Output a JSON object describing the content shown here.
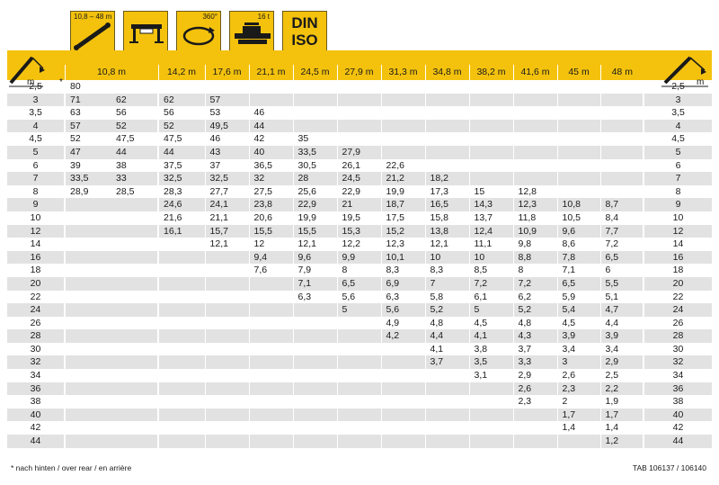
{
  "icons": {
    "boom_range": "10,8 – 48 m",
    "outrigger_icon": "outrigger-icon",
    "rotation": "360°",
    "counterweight": "16 t",
    "standard_line1": "DIN",
    "standard_line2": "ISO"
  },
  "header": {
    "radius_unit": "m",
    "right_unit": "m",
    "boom_lengths": [
      "10,8 m",
      "14,2 m",
      "17,6 m",
      "21,1 m",
      "24,5 m",
      "27,9 m",
      "31,3 m",
      "34,8 m",
      "38,2 m",
      "41,6 m",
      "45 m",
      "48 m"
    ],
    "footnote_marker": "*"
  },
  "rows": [
    {
      "r": "2,5",
      "v": [
        "80",
        "",
        "",
        "",
        "",
        "",
        "",
        "",
        "",
        "",
        "",
        "",
        ""
      ]
    },
    {
      "r": "3",
      "v": [
        "71",
        "62",
        "62",
        "57",
        "",
        "",
        "",
        "",
        "",
        "",
        "",
        "",
        ""
      ]
    },
    {
      "r": "3,5",
      "v": [
        "63",
        "56",
        "56",
        "53",
        "46",
        "",
        "",
        "",
        "",
        "",
        "",
        "",
        ""
      ]
    },
    {
      "r": "4",
      "v": [
        "57",
        "52",
        "52",
        "49,5",
        "44",
        "",
        "",
        "",
        "",
        "",
        "",
        "",
        ""
      ]
    },
    {
      "r": "4,5",
      "v": [
        "52",
        "47,5",
        "47,5",
        "46",
        "42",
        "35",
        "",
        "",
        "",
        "",
        "",
        "",
        ""
      ]
    },
    {
      "r": "5",
      "v": [
        "47",
        "44",
        "44",
        "43",
        "40",
        "33,5",
        "27,9",
        "",
        "",
        "",
        "",
        "",
        ""
      ]
    },
    {
      "r": "6",
      "v": [
        "39",
        "38",
        "37,5",
        "37",
        "36,5",
        "30,5",
        "26,1",
        "22,6",
        "",
        "",
        "",
        "",
        ""
      ]
    },
    {
      "r": "7",
      "v": [
        "33,5",
        "33",
        "32,5",
        "32,5",
        "32",
        "28",
        "24,5",
        "21,2",
        "18,2",
        "",
        "",
        "",
        ""
      ]
    },
    {
      "r": "8",
      "v": [
        "28,9",
        "28,5",
        "28,3",
        "27,7",
        "27,5",
        "25,6",
        "22,9",
        "19,9",
        "17,3",
        "15",
        "12,8",
        "",
        ""
      ]
    },
    {
      "r": "9",
      "v": [
        "",
        "",
        "24,6",
        "24,1",
        "23,8",
        "22,9",
        "21",
        "18,7",
        "16,5",
        "14,3",
        "12,3",
        "10,8",
        "8,7"
      ]
    },
    {
      "r": "10",
      "v": [
        "",
        "",
        "21,6",
        "21,1",
        "20,6",
        "19,9",
        "19,5",
        "17,5",
        "15,8",
        "13,7",
        "11,8",
        "10,5",
        "8,4"
      ]
    },
    {
      "r": "12",
      "v": [
        "",
        "",
        "16,1",
        "15,7",
        "15,5",
        "15,5",
        "15,3",
        "15,2",
        "13,8",
        "12,4",
        "10,9",
        "9,6",
        "7,7"
      ]
    },
    {
      "r": "14",
      "v": [
        "",
        "",
        "",
        "12,1",
        "12",
        "12,1",
        "12,2",
        "12,3",
        "12,1",
        "11,1",
        "9,8",
        "8,6",
        "7,2"
      ]
    },
    {
      "r": "16",
      "v": [
        "",
        "",
        "",
        "",
        "9,4",
        "9,6",
        "9,9",
        "10,1",
        "10",
        "10",
        "8,8",
        "7,8",
        "6,5"
      ]
    },
    {
      "r": "18",
      "v": [
        "",
        "",
        "",
        "",
        "7,6",
        "7,9",
        "8",
        "8,3",
        "8,3",
        "8,5",
        "8",
        "7,1",
        "6"
      ]
    },
    {
      "r": "20",
      "v": [
        "",
        "",
        "",
        "",
        "",
        "7,1",
        "6,5",
        "6,9",
        "7",
        "7,2",
        "7,2",
        "6,5",
        "5,5"
      ]
    },
    {
      "r": "22",
      "v": [
        "",
        "",
        "",
        "",
        "",
        "6,3",
        "5,6",
        "6,3",
        "5,8",
        "6,1",
        "6,2",
        "5,9",
        "5,1"
      ]
    },
    {
      "r": "24",
      "v": [
        "",
        "",
        "",
        "",
        "",
        "",
        "5",
        "5,6",
        "5,2",
        "5",
        "5,2",
        "5,4",
        "4,7"
      ]
    },
    {
      "r": "26",
      "v": [
        "",
        "",
        "",
        "",
        "",
        "",
        "",
        "4,9",
        "4,8",
        "4,5",
        "4,8",
        "4,5",
        "4,4"
      ]
    },
    {
      "r": "28",
      "v": [
        "",
        "",
        "",
        "",
        "",
        "",
        "",
        "4,2",
        "4,4",
        "4,1",
        "4,3",
        "3,9",
        "3,9"
      ]
    },
    {
      "r": "30",
      "v": [
        "",
        "",
        "",
        "",
        "",
        "",
        "",
        "",
        "4,1",
        "3,8",
        "3,7",
        "3,4",
        "3,4"
      ]
    },
    {
      "r": "32",
      "v": [
        "",
        "",
        "",
        "",
        "",
        "",
        "",
        "",
        "3,7",
        "3,5",
        "3,3",
        "3",
        "2,9"
      ]
    },
    {
      "r": "34",
      "v": [
        "",
        "",
        "",
        "",
        "",
        "",
        "",
        "",
        "",
        "3,1",
        "2,9",
        "2,6",
        "2,5"
      ]
    },
    {
      "r": "36",
      "v": [
        "",
        "",
        "",
        "",
        "",
        "",
        "",
        "",
        "",
        "",
        "2,6",
        "2,3",
        "2,2"
      ]
    },
    {
      "r": "38",
      "v": [
        "",
        "",
        "",
        "",
        "",
        "",
        "",
        "",
        "",
        "",
        "2,3",
        "2",
        "1,9"
      ]
    },
    {
      "r": "40",
      "v": [
        "",
        "",
        "",
        "",
        "",
        "",
        "",
        "",
        "",
        "",
        "",
        "1,7",
        "1,7"
      ]
    },
    {
      "r": "42",
      "v": [
        "",
        "",
        "",
        "",
        "",
        "",
        "",
        "",
        "",
        "",
        "",
        "1,4",
        "1,4"
      ]
    },
    {
      "r": "44",
      "v": [
        "",
        "",
        "",
        "",
        "",
        "",
        "",
        "",
        "",
        "",
        "",
        "",
        "1,2"
      ]
    }
  ],
  "footer": {
    "note": "* nach hinten / over rear / en arrière",
    "tab_ref": "TAB 106137 / 106140"
  },
  "colors": {
    "accent": "#f4c20d",
    "shade": "#e2e2e2"
  }
}
